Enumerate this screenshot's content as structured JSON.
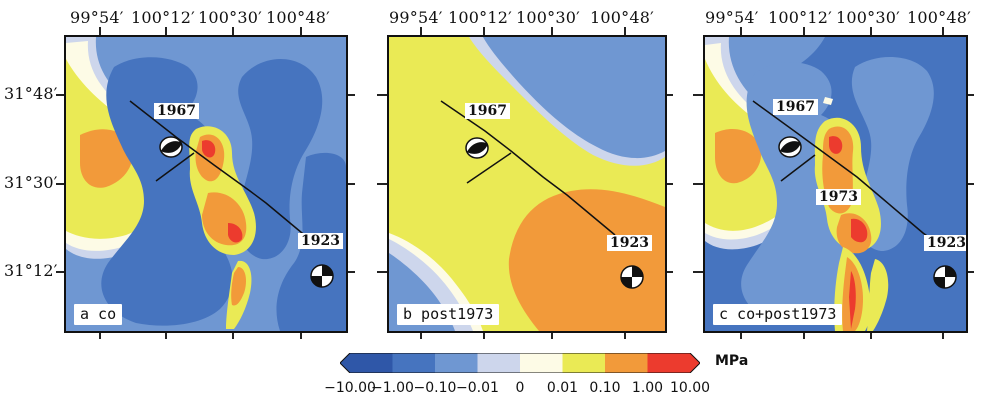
{
  "longitude_ticks": [
    "99°54′",
    "100°12′",
    "100°30′",
    "100°48′"
  ],
  "latitude_ticks": [
    "31°48′",
    "31°30′",
    "31°12′"
  ],
  "panels": [
    {
      "label": "a co",
      "events": [
        "1967",
        "1923"
      ]
    },
    {
      "label": "b post1973",
      "events": [
        "1967",
        "1923"
      ]
    },
    {
      "label": "c co+post1973",
      "events": [
        "1967",
        "1973",
        "1923"
      ]
    }
  ],
  "colorbar": {
    "unit": "MPa",
    "tick_labels": [
      "-10.00",
      "-1.00",
      "-0.10",
      "-0.01",
      "0",
      "0.01",
      "0.10",
      "1.00",
      "10.00"
    ],
    "colors": [
      "#2f57a8",
      "#4674bf",
      "#6f97d2",
      "#cdd6ec",
      "#fdfbe6",
      "#eaea55",
      "#f29a3a",
      "#ec3b2e"
    ]
  }
}
